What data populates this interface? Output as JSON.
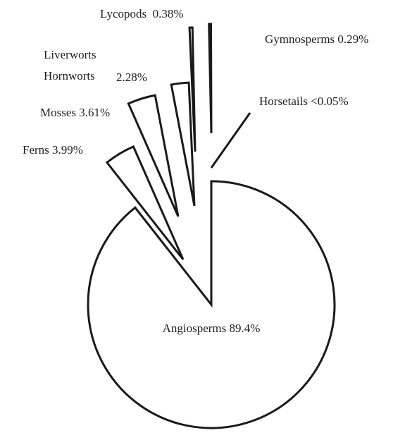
{
  "chart_data": {
    "type": "pie",
    "title": "",
    "legend": "none",
    "slices": [
      {
        "name": "Angiosperms",
        "value": 89.4,
        "label": "Angiosperms 89.4%"
      },
      {
        "name": "Ferns",
        "value": 3.99,
        "label": "Ferns 3.99%"
      },
      {
        "name": "Mosses",
        "value": 3.61,
        "label": "Mosses 3.61%"
      },
      {
        "name": "Liverworts Hornworts",
        "value": 2.28,
        "label_lines": [
          "Liverworts",
          "Hornworts"
        ],
        "value_label": "2.28%"
      },
      {
        "name": "Lycopods",
        "value": 0.38,
        "label": "Lycopods  0.38%"
      },
      {
        "name": "Gymnosperms",
        "value": 0.29,
        "label": "Gymnosperms 0.29%"
      },
      {
        "name": "Horsetails",
        "value": 0.05,
        "label": "Horsetails <0.05%"
      }
    ],
    "stroke_color": "#1a1a1a",
    "fill_color": "#ffffff"
  }
}
